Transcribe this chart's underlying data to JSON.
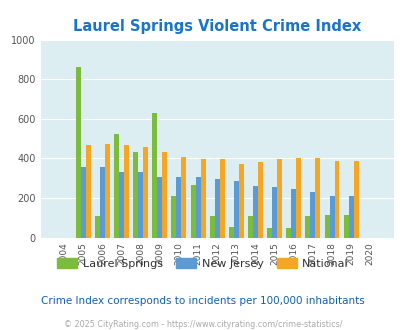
{
  "title": "Laurel Springs Violent Crime Index",
  "years": [
    "2004",
    "2005",
    "2006",
    "2007",
    "2008",
    "2009",
    "2010",
    "2011",
    "2012",
    "2013",
    "2014",
    "2015",
    "2016",
    "2017",
    "2018",
    "2019",
    "2020"
  ],
  "laurel_springs": [
    0,
    860,
    110,
    525,
    430,
    630,
    210,
    265,
    110,
    55,
    110,
    50,
    50,
    110,
    115,
    115,
    0
  ],
  "new_jersey": [
    0,
    355,
    355,
    330,
    330,
    308,
    308,
    308,
    295,
    285,
    260,
    255,
    245,
    228,
    208,
    208,
    0
  ],
  "national": [
    0,
    470,
    475,
    468,
    458,
    430,
    408,
    396,
    396,
    372,
    380,
    398,
    404,
    400,
    385,
    385,
    0
  ],
  "color_laurel": "#7cbc3c",
  "color_nj": "#5b9bd5",
  "color_national": "#f5a623",
  "bg_color": "#ddeef3",
  "ylim": [
    0,
    1000
  ],
  "yticks": [
    0,
    200,
    400,
    600,
    800,
    1000
  ],
  "subtitle": "Crime Index corresponds to incidents per 100,000 inhabitants",
  "footer": "© 2025 CityRating.com - https://www.cityrating.com/crime-statistics/",
  "legend_labels": [
    "Laurel Springs",
    "New Jersey",
    "National"
  ],
  "title_color": "#1874cd",
  "subtitle_color": "#1060b0",
  "footer_color": "#aaaaaa"
}
